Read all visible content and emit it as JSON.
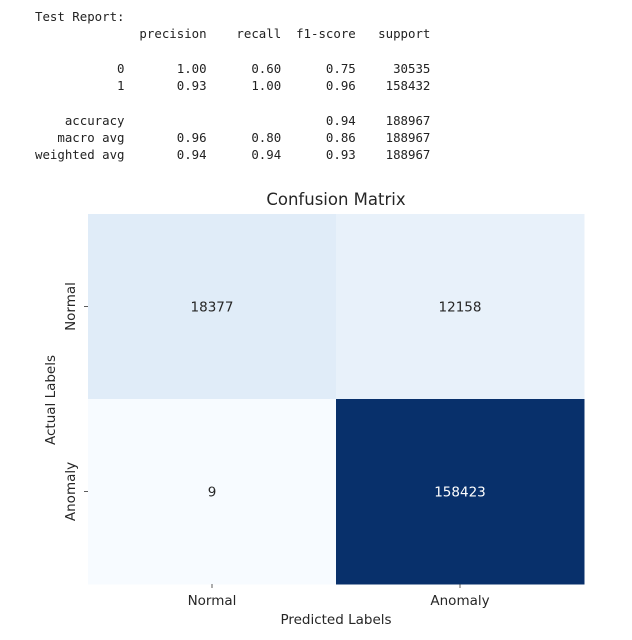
{
  "report": {
    "lines": [
      "Test Report:",
      "              precision    recall  f1-score   support",
      "",
      "           0       1.00      0.60      0.75     30535",
      "           1       0.93      1.00      0.96    158432",
      "",
      "    accuracy                           0.94    188967",
      "   macro avg       0.96      0.80      0.86    188967",
      "weighted avg       0.94      0.94      0.93    188967"
    ]
  },
  "chart_data": {
    "type": "heatmap",
    "title": "Confusion Matrix",
    "xlabel": "Predicted Labels",
    "ylabel": "Actual Labels",
    "x_categories": [
      "Normal",
      "Anomaly"
    ],
    "y_categories": [
      "Normal",
      "Anomaly"
    ],
    "values": [
      [
        18377,
        12158
      ],
      [
        9,
        158423
      ]
    ],
    "colormap": "Blues",
    "colorbar": false,
    "colors": {
      "low": "#f7fbff",
      "high": "#08306b",
      "text_light": "#ffffff",
      "text_dark": "#262626"
    }
  }
}
